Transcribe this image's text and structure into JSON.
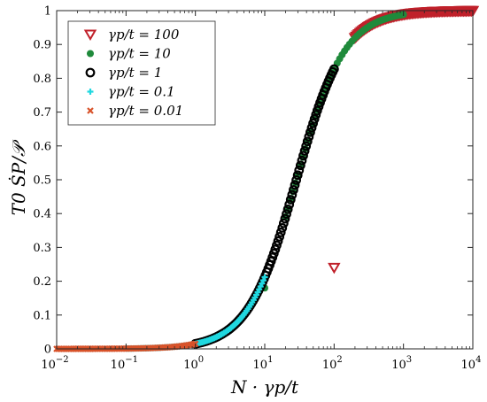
{
  "chart_data": {
    "type": "scatter",
    "x_scale": "log",
    "y_scale": "linear",
    "xlim": [
      0.01,
      10000
    ],
    "ylim": [
      0,
      1
    ],
    "xlabel": "N · γp/t",
    "ylabel": "T0 ṠP/𝒫",
    "x_ticks": [
      {
        "value": 0.01,
        "base": "10",
        "exp": "−2"
      },
      {
        "value": 0.1,
        "base": "10",
        "exp": "−1"
      },
      {
        "value": 1,
        "base": "10",
        "exp": "0"
      },
      {
        "value": 10,
        "base": "10",
        "exp": "1"
      },
      {
        "value": 100,
        "base": "10",
        "exp": "2"
      },
      {
        "value": 1000,
        "base": "10",
        "exp": "3"
      },
      {
        "value": 10000,
        "base": "10",
        "exp": "4"
      }
    ],
    "y_ticks": [
      "0",
      "0.1",
      "0.2",
      "0.3",
      "0.4",
      "0.5",
      "0.6",
      "0.7",
      "0.8",
      "0.9",
      "1"
    ],
    "grid": false,
    "legend_position": "top-left",
    "model": {
      "k": 0.035,
      "p": 1.25
    },
    "series": [
      {
        "name": "γp/t = 100",
        "legend_var": "γp/t",
        "legend_value": "100",
        "marker": "triangle-down-open",
        "color": "#c0202a",
        "outliers": [
          {
            "x": 100,
            "y": 0.24
          }
        ],
        "curve": {
          "start": 200,
          "stop": 10000,
          "count": 90
        }
      },
      {
        "name": "γp/t = 10",
        "legend_var": "γp/t",
        "legend_value": "10",
        "marker": "circle-filled",
        "color": "#1f8a3b",
        "outliers": [
          {
            "x": 10,
            "y": 0.18
          }
        ],
        "curve": {
          "start": 20,
          "stop": 1000,
          "count": 49
        }
      },
      {
        "name": "γp/t = 1",
        "legend_var": "γp/t",
        "legend_value": "1",
        "marker": "circle-open",
        "color": "#000000",
        "outliers": [],
        "curve": {
          "start": 1,
          "stop": 100,
          "count": 100
        }
      },
      {
        "name": "γp/t = 0.1",
        "legend_var": "γp/t",
        "legend_value": "0.1",
        "marker": "plus",
        "color": "#20d8e0",
        "outliers": [],
        "curve": {
          "start": 0.1,
          "stop": 10,
          "count": 100
        }
      },
      {
        "name": "γp/t = 0.01",
        "legend_var": "γp/t",
        "legend_value": "0.01",
        "marker": "x",
        "color": "#d8532a",
        "outliers": [],
        "curve": {
          "start": 0.01,
          "stop": 1,
          "count": 100
        }
      }
    ]
  }
}
